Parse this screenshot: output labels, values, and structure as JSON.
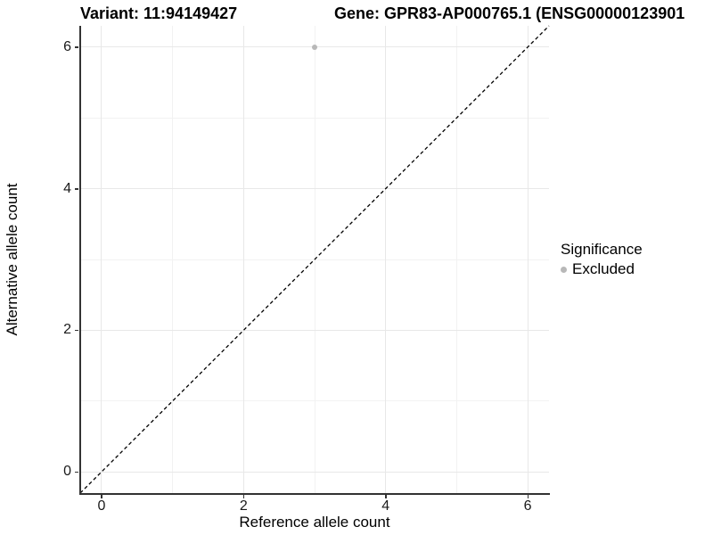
{
  "header": {
    "variant_title": "Variant: 11:94149427",
    "gene_title": "Gene: GPR83-AP000765.1 (ENSG00000123901"
  },
  "axes": {
    "x_label": "Reference allele count",
    "y_label": "Alternative allele count"
  },
  "legend": {
    "title": "Significance",
    "items": [
      {
        "label": "Excluded",
        "color": "#b8b8b8"
      }
    ]
  },
  "style": {
    "axis_line_color": "#333333",
    "tick_color": "#333333",
    "tick_label_color": "#1a1a1a",
    "grid_major_color": "#e8e8e8",
    "grid_minor_color": "#f2f2f2",
    "identity_line_color": "#000000"
  },
  "chart_data": {
    "type": "scatter",
    "title": "Variant: 11:94149427",
    "subtitle": "Gene: GPR83-AP000765.1 (ENSG00000123901",
    "xlabel": "Reference allele count",
    "ylabel": "Alternative allele count",
    "xlim": [
      -0.3,
      6.3
    ],
    "ylim": [
      -0.3,
      6.3
    ],
    "x_major_ticks": [
      0,
      2,
      4,
      6
    ],
    "y_major_ticks": [
      0,
      2,
      4,
      6
    ],
    "x_minor_ticks": [
      1,
      3,
      5
    ],
    "y_minor_ticks": [
      1,
      3,
      5
    ],
    "grid": "major+minor",
    "legend_position": "right",
    "legend_title": "Significance",
    "series": [
      {
        "name": "Excluded",
        "color": "#b8b8b8",
        "points": [
          {
            "x": 3,
            "y": 6
          }
        ]
      }
    ],
    "identity_line": {
      "slope": 1,
      "intercept": 0,
      "style": "dashed",
      "color": "#000000",
      "dash": "4 3"
    }
  }
}
